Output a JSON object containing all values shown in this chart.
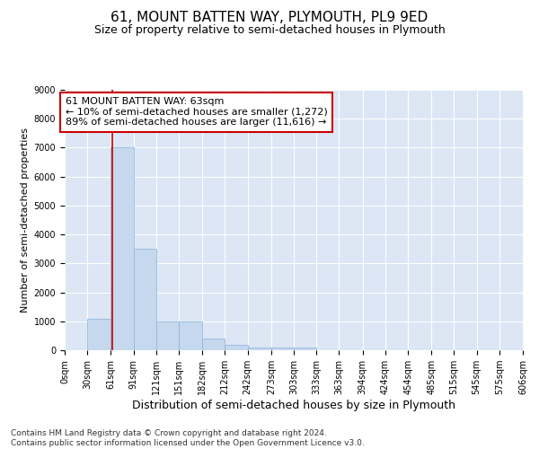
{
  "title": "61, MOUNT BATTEN WAY, PLYMOUTH, PL9 9ED",
  "subtitle": "Size of property relative to semi-detached houses in Plymouth",
  "xlabel": "Distribution of semi-detached houses by size in Plymouth",
  "ylabel": "Number of semi-detached properties",
  "property_size": 63,
  "bin_edges": [
    0,
    30,
    61,
    91,
    121,
    151,
    182,
    212,
    242,
    273,
    303,
    333,
    363,
    394,
    424,
    454,
    485,
    515,
    545,
    575,
    606
  ],
  "bar_heights": [
    0,
    1100,
    7000,
    3500,
    1000,
    1000,
    400,
    200,
    100,
    100,
    100,
    0,
    0,
    0,
    0,
    0,
    0,
    0,
    0,
    0
  ],
  "bar_color": "#c5d8ee",
  "bar_edgecolor": "#8ab4d8",
  "vline_color": "#cc0000",
  "vline_x": 63,
  "ylim": [
    0,
    9000
  ],
  "yticks": [
    0,
    1000,
    2000,
    3000,
    4000,
    5000,
    6000,
    7000,
    8000,
    9000
  ],
  "annotation_text": "61 MOUNT BATTEN WAY: 63sqm\n← 10% of semi-detached houses are smaller (1,272)\n89% of semi-detached houses are larger (11,616) →",
  "annotation_box_color": "#ffffff",
  "annotation_box_edgecolor": "#cc0000",
  "footnote": "Contains HM Land Registry data © Crown copyright and database right 2024.\nContains public sector information licensed under the Open Government Licence v3.0.",
  "bg_color": "#dce6f5",
  "grid_color": "#ffffff",
  "title_fontsize": 11,
  "subtitle_fontsize": 9,
  "xlabel_fontsize": 9,
  "ylabel_fontsize": 8,
  "tick_fontsize": 7,
  "annotation_fontsize": 8,
  "footnote_fontsize": 6.5
}
